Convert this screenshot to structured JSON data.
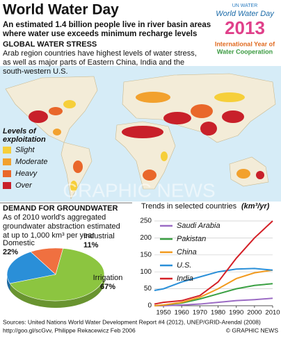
{
  "header": {
    "title": "World Water Day",
    "subtitle": [
      "An estimated 1.4 billion people live in river basin areas",
      "where water use exceeds minimum recharge levels"
    ]
  },
  "logo": {
    "org": "UN WATER",
    "event": "World Water Day",
    "year": "2013",
    "theme": [
      "International Year of",
      "Water Cooperation"
    ]
  },
  "stress": {
    "heading": "GLOBAL WATER STRESS",
    "text": [
      "Arab region countries have highest levels of water stress,",
      "as well as major parts of Eastern China, India and the",
      "south-western U.S."
    ]
  },
  "legend": {
    "title": [
      "Levels of",
      "exploitation"
    ],
    "items": [
      {
        "name": "Slight",
        "color": "#f6cf3a"
      },
      {
        "name": "Moderate",
        "color": "#f2a12e"
      },
      {
        "name": "Heavy",
        "color": "#e9672a"
      },
      {
        "name": "Over",
        "color": "#c8202a"
      }
    ]
  },
  "watermark": "GRAPHIC NEWS",
  "demand": {
    "heading": "DEMAND FOR GROUNDWATER",
    "text": [
      "As of 2010 world's aggregated",
      "groundwater abstraction estimated",
      "at up to 1,000 km³ per year"
    ]
  },
  "chart_data": [
    {
      "type": "pie",
      "categories": [
        "Domestic",
        "Industrial",
        "Irrigation"
      ],
      "values": [
        22,
        11,
        67
      ],
      "value_labels": [
        "22%",
        "11%",
        "67%"
      ],
      "colors": [
        "#2a8fd8",
        "#f07040",
        "#8cc540"
      ]
    },
    {
      "type": "line",
      "title": "Trends in selected countries",
      "unit": "(km³/yr)",
      "x": [
        1945,
        1950,
        1960,
        1970,
        1980,
        1990,
        2000,
        2010
      ],
      "xlim": [
        1945,
        2010
      ],
      "xticks": [
        1950,
        1960,
        1970,
        1980,
        1990,
        2000,
        2010
      ],
      "ylim": [
        0,
        250
      ],
      "yticks": [
        0,
        50,
        100,
        150,
        200,
        250
      ],
      "grid": true,
      "series": [
        {
          "name": "Saudi Arabia",
          "color": "#9b6bc4",
          "values": [
            0,
            0,
            2,
            5,
            10,
            15,
            18,
            22
          ]
        },
        {
          "name": "Pakistan",
          "color": "#3aa043",
          "values": [
            0,
            2,
            8,
            20,
            35,
            50,
            60,
            65
          ]
        },
        {
          "name": "China",
          "color": "#f29a1e",
          "values": [
            0,
            2,
            10,
            25,
            50,
            80,
            97,
            105
          ]
        },
        {
          "name": "U.S.",
          "color": "#2a8fd8",
          "values": [
            45,
            50,
            70,
            85,
            100,
            108,
            110,
            105
          ]
        },
        {
          "name": "India",
          "color": "#d42027",
          "values": [
            5,
            10,
            15,
            30,
            70,
            140,
            200,
            250
          ]
        }
      ]
    }
  ],
  "footer": {
    "sources": [
      "Sources: United Nations World Water Development Report #4 (2012), UNEP/GRID-Arendal (2008)",
      "http://goo.gl/scGvv, Philippe Rekacewicz Feb 2006"
    ],
    "credit": "© GRAPHIC NEWS"
  }
}
